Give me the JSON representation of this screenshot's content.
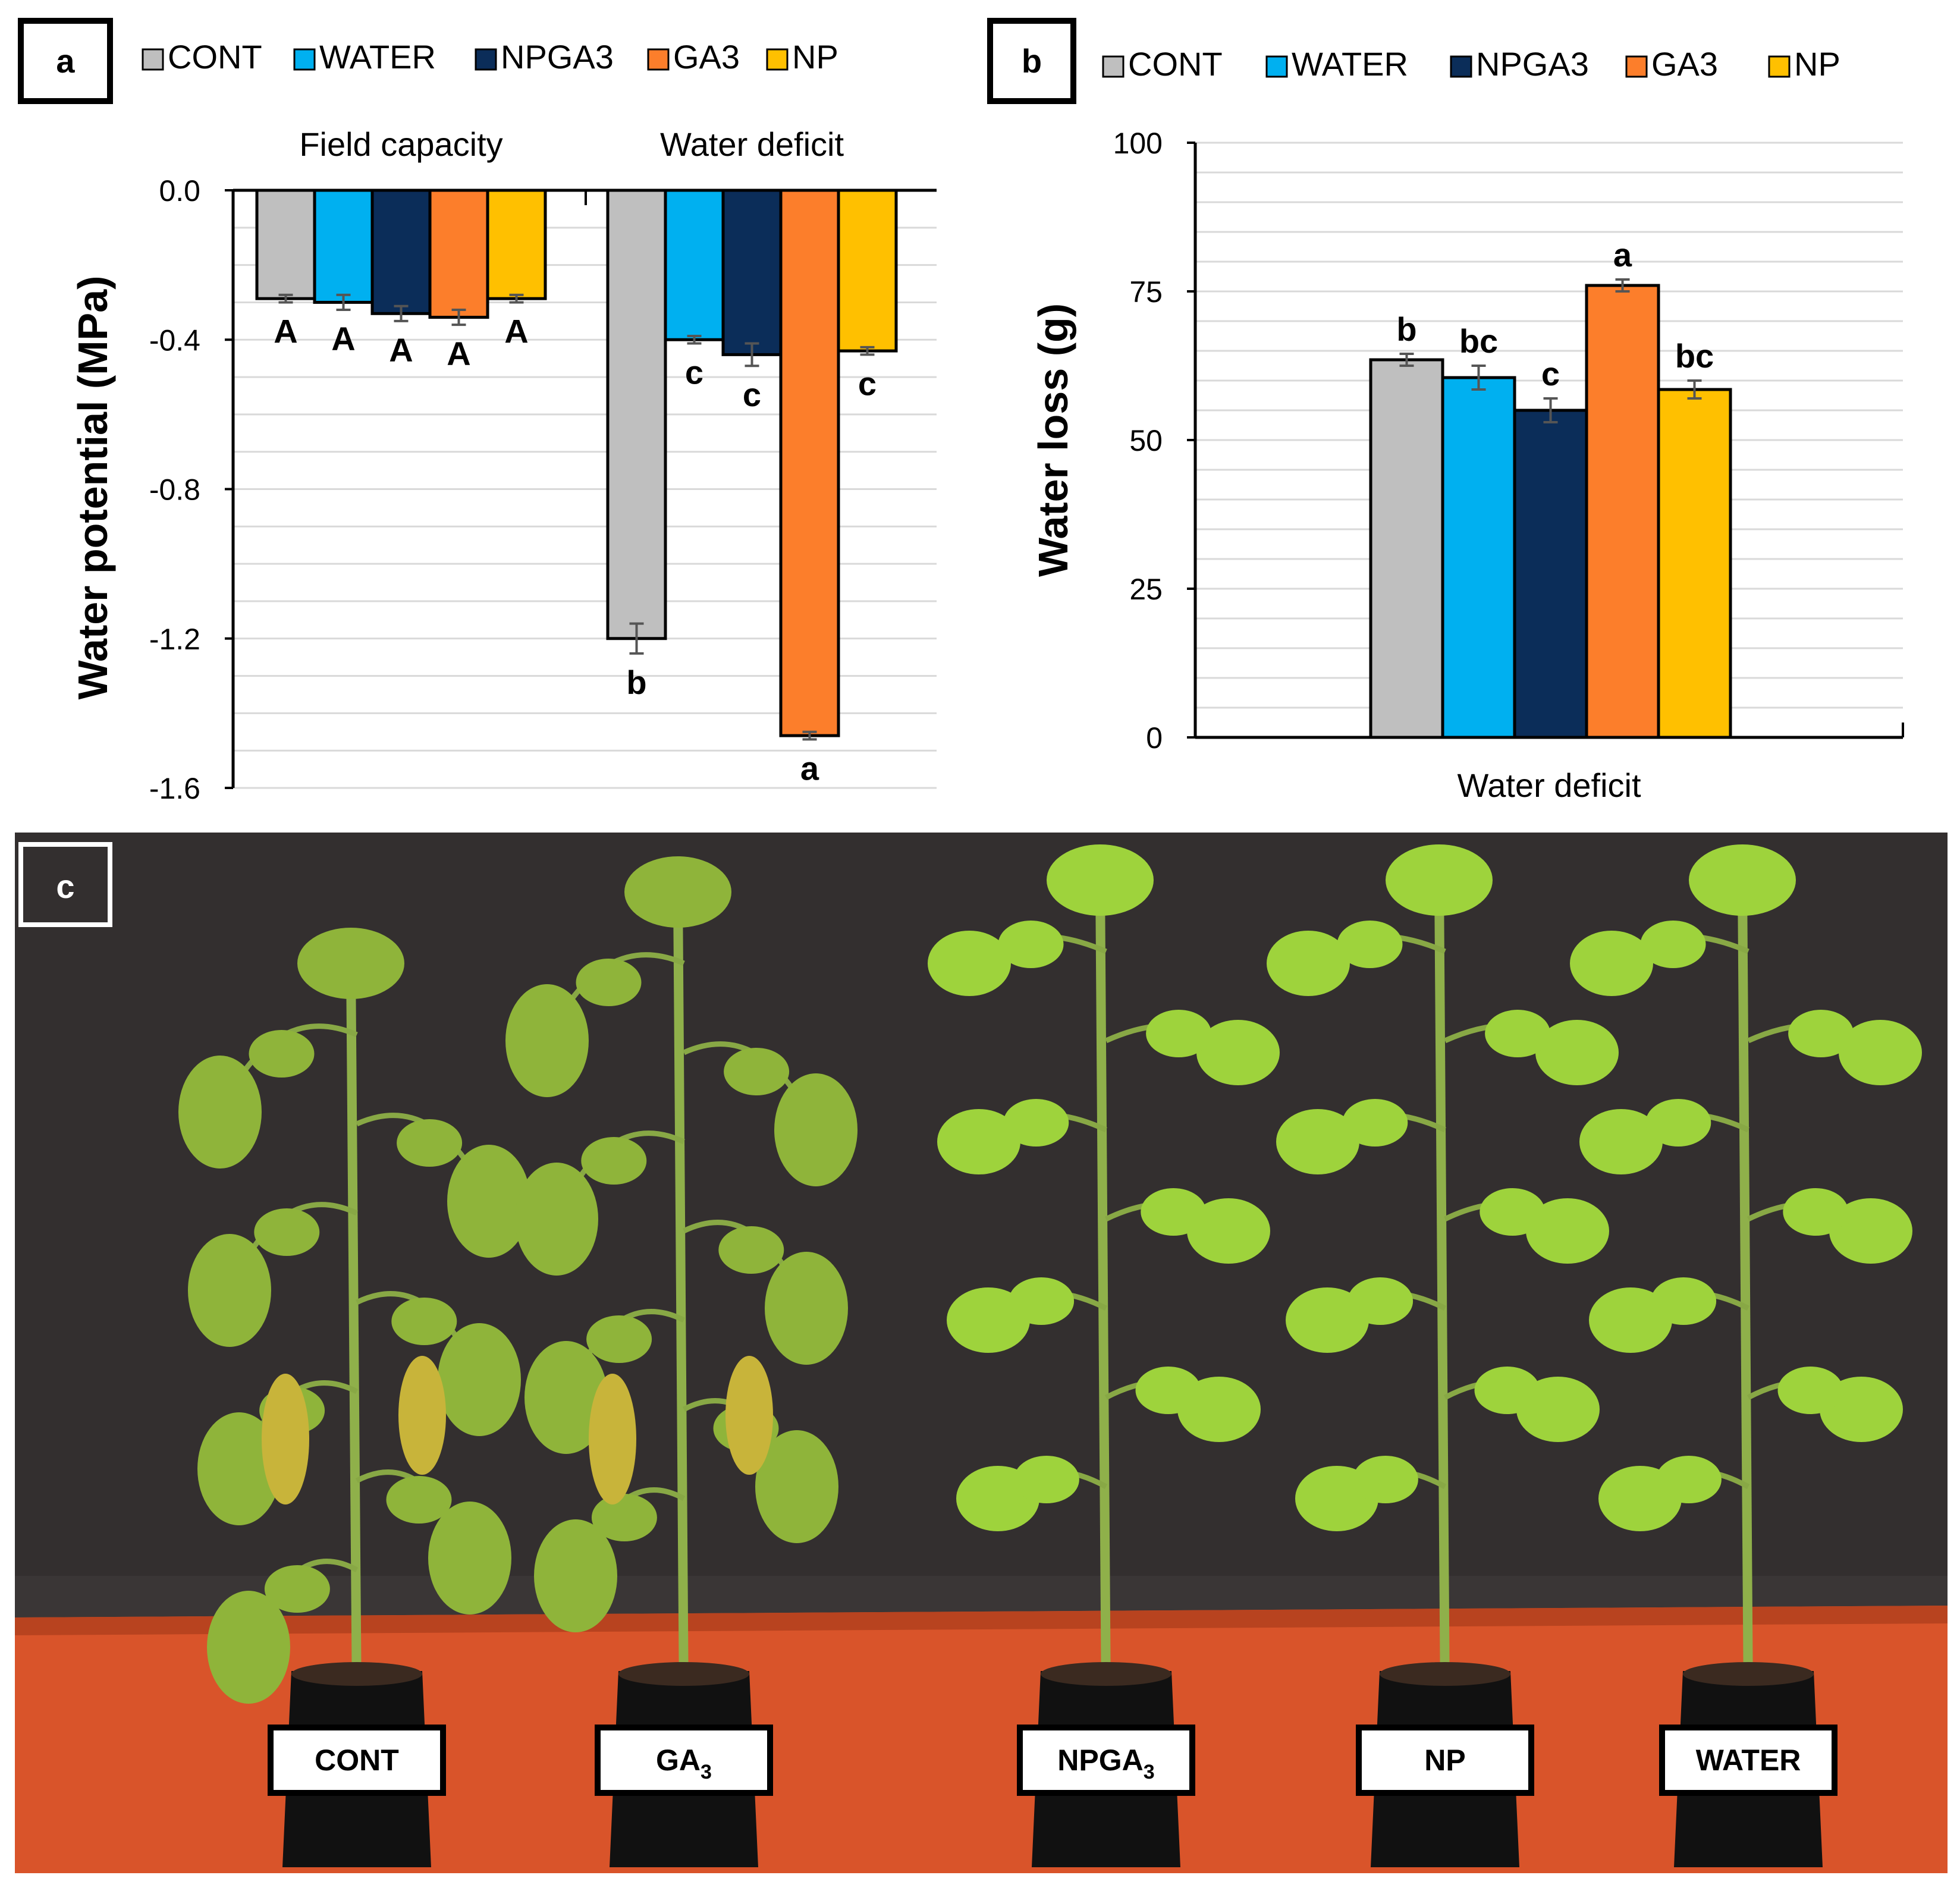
{
  "colors": {
    "CONT": "#bfbfbf",
    "WATER": "#00b0f0",
    "NPGA3": "#0b2d59",
    "GA3": "#fc7e2b",
    "NP": "#ffc000",
    "grid": "#d9d9d9",
    "photo_bg": "#3a3636",
    "table": "#d9542a"
  },
  "chart_data": [
    {
      "panel": "a",
      "type": "bar",
      "legend": [
        "CONT",
        "WATER",
        "NPGA3",
        "GA3",
        "NP"
      ],
      "ylabel": "Water potential (MPa)",
      "yticks": [
        "0.0",
        "-0.4",
        "-0.8",
        "-1.2",
        "-1.6"
      ],
      "ylim": [
        -1.6,
        0
      ],
      "grid": true,
      "groups": [
        {
          "name": "Field capacity",
          "values": [
            -0.29,
            -0.3,
            -0.33,
            -0.34,
            -0.29
          ],
          "errors": [
            0.01,
            0.02,
            0.02,
            0.02,
            0.01
          ],
          "letters": [
            "A",
            "A",
            "A",
            "A",
            "A"
          ]
        },
        {
          "name": "Water deficit",
          "values": [
            -1.2,
            -0.4,
            -0.44,
            -1.46,
            -0.43
          ],
          "errors": [
            0.04,
            0.01,
            0.03,
            0.01,
            0.01
          ],
          "letters": [
            "b",
            "c",
            "c",
            "a",
            "c"
          ]
        }
      ]
    },
    {
      "panel": "b",
      "type": "bar",
      "legend": [
        "CONT",
        "WATER",
        "NPGA3",
        "GA3",
        "NP"
      ],
      "ylabel": "Water loss (g)",
      "xlabel": "Water deficit",
      "yticks": [
        "100",
        "75",
        "50",
        "25",
        "0"
      ],
      "ylim": [
        0,
        100
      ],
      "grid": true,
      "values": [
        63.5,
        60.5,
        55,
        76,
        58.5
      ],
      "errors": [
        1,
        2,
        2,
        1,
        1.5
      ],
      "letters": [
        "b",
        "bc",
        "c",
        "a",
        "bc"
      ]
    }
  ],
  "photo": {
    "panel": "c",
    "labels": [
      {
        "main": "CONT",
        "sub": ""
      },
      {
        "main": "GA",
        "sub": "3"
      },
      {
        "main": "NPGA",
        "sub": "3"
      },
      {
        "main": "NP",
        "sub": ""
      },
      {
        "main": "WATER",
        "sub": ""
      }
    ]
  }
}
